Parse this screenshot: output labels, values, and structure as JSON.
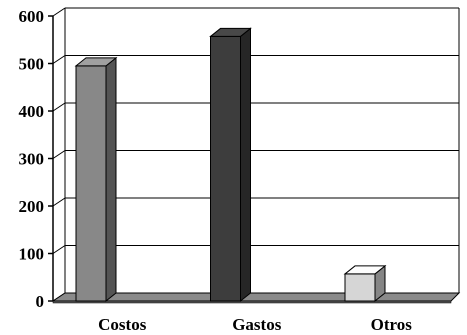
{
  "chart_data": {
    "type": "bar",
    "categories": [
      "Costos",
      "Gastos",
      "Otros"
    ],
    "values": [
      495,
      557,
      57
    ],
    "ylim": [
      0,
      600
    ],
    "yticks": [
      0,
      100,
      200,
      300,
      400,
      500,
      600
    ],
    "ytick_labels": [
      "0",
      "100",
      "200",
      "300",
      "400",
      "500",
      "600"
    ],
    "grid": true,
    "style": "3d",
    "colors": [
      "#888888",
      "#3d3d3d",
      "#d6d6d6"
    ]
  }
}
